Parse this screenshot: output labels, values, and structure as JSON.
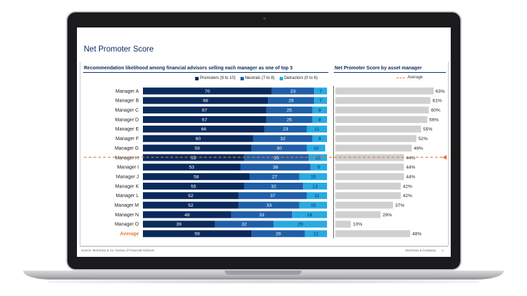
{
  "slide": {
    "title": "Net Promoter Score",
    "left_section_title": "Recommendation likelihood among financial advisors selling each manager as one of top 3",
    "right_section_title": "Net Promoter Score by asset manager",
    "footer_source": "Source: McKinsey & Co. Survey of Financial Advisors",
    "footer_brand": "McKinsey & Company",
    "footer_page": "1"
  },
  "colors": {
    "promoters": "#0b2a5c",
    "neutrals": "#1f5fa8",
    "detractors": "#29aae2",
    "nps_bar": "#d0d0d0",
    "average_line": "#e8762d",
    "average_label": "#e8762d"
  },
  "chart_data": [
    {
      "type": "bar",
      "orientation": "horizontal",
      "stacked": true,
      "title": "Recommendation likelihood among financial advisors selling each manager as one of top 3",
      "categories": [
        "Manager A",
        "Manager B",
        "Manager C",
        "Manager D",
        "Manager E",
        "Manager F",
        "Manager G",
        "Manager H",
        "Manager I",
        "Manager J",
        "Manager K",
        "Manager L",
        "Manager M",
        "Manager N",
        "Manager O",
        "Average"
      ],
      "series": [
        {
          "name": "Promoters (9 to 10)",
          "values": [
            70,
            68,
            67,
            67,
            66,
            60,
            59,
            55,
            53,
            58,
            55,
            52,
            52,
            48,
            39,
            59
          ]
        },
        {
          "name": "Neutrals (7 to 8)",
          "values": [
            23,
            25,
            25,
            25,
            23,
            32,
            30,
            35,
            38,
            27,
            32,
            37,
            33,
            33,
            32,
            29
          ]
        },
        {
          "name": "Detractors (0 to 6)",
          "values": [
            7,
            7,
            8,
            8,
            11,
            8,
            10,
            10,
            9,
            15,
            13,
            11,
            15,
            19,
            29,
            12
          ]
        }
      ],
      "xlim": [
        0,
        100
      ],
      "legend": "top"
    },
    {
      "type": "bar",
      "orientation": "horizontal",
      "title": "Net Promoter Score by asset manager",
      "categories": [
        "Manager A",
        "Manager B",
        "Manager C",
        "Manager D",
        "Manager E",
        "Manager F",
        "Manager G",
        "Manager H",
        "Manager I",
        "Manager J",
        "Manager K",
        "Manager L",
        "Manager M",
        "Manager N",
        "Manager O",
        "Average"
      ],
      "values": [
        63,
        61,
        60,
        59,
        55,
        52,
        49,
        44,
        44,
        44,
        42,
        42,
        37,
        29,
        10,
        48
      ],
      "value_labels": [
        "63%",
        "61%",
        "60%",
        "59%",
        "55%",
        "52%",
        "49%",
        "44%",
        "44%",
        "44%",
        "42%",
        "42%",
        "37%",
        "29%",
        "10%",
        "48%"
      ],
      "reference_line": {
        "label": "Average",
        "value": 48
      },
      "legend": "top-right"
    }
  ]
}
